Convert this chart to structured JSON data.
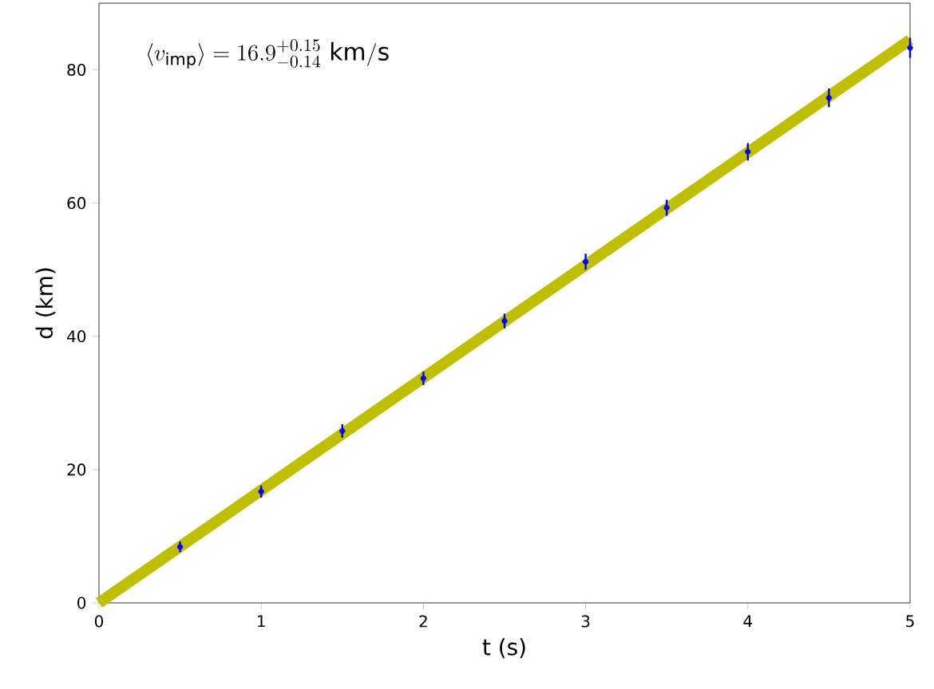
{
  "chart_data": {
    "type": "scatter",
    "xlabel": "t (s)",
    "ylabel": "d (km)",
    "annotations": [
      "\\langle v_{\\mathrm{imp}}\\rangle = 16.9^{+0.15}_{-0.14}\\ \\mathrm{km/s}"
    ],
    "xlim": [
      0,
      5
    ],
    "ylim": [
      0,
      90
    ],
    "xticks": [
      0,
      1,
      2,
      3,
      4,
      5
    ],
    "yticks": [
      0,
      20,
      40,
      60,
      80
    ],
    "grid": false,
    "series": [
      {
        "type": "line",
        "marker": "none",
        "color": "#bfbf00",
        "x": [
          0,
          5
        ],
        "values": [
          0,
          84.5
        ]
      },
      {
        "marker": "circle",
        "color": "#0000ff",
        "x": [
          0.5,
          1,
          1.5,
          2,
          2.5,
          3,
          3.5,
          4,
          4.5,
          5
        ],
        "values": [
          8.4,
          16.7,
          25.8,
          33.7,
          42.3,
          51.2,
          59.3,
          67.7,
          75.8,
          83.3
        ],
        "errors": [
          0.8,
          0.9,
          1,
          1,
          1.1,
          1.2,
          1.2,
          1.3,
          1.4,
          1.5
        ]
      }
    ]
  }
}
